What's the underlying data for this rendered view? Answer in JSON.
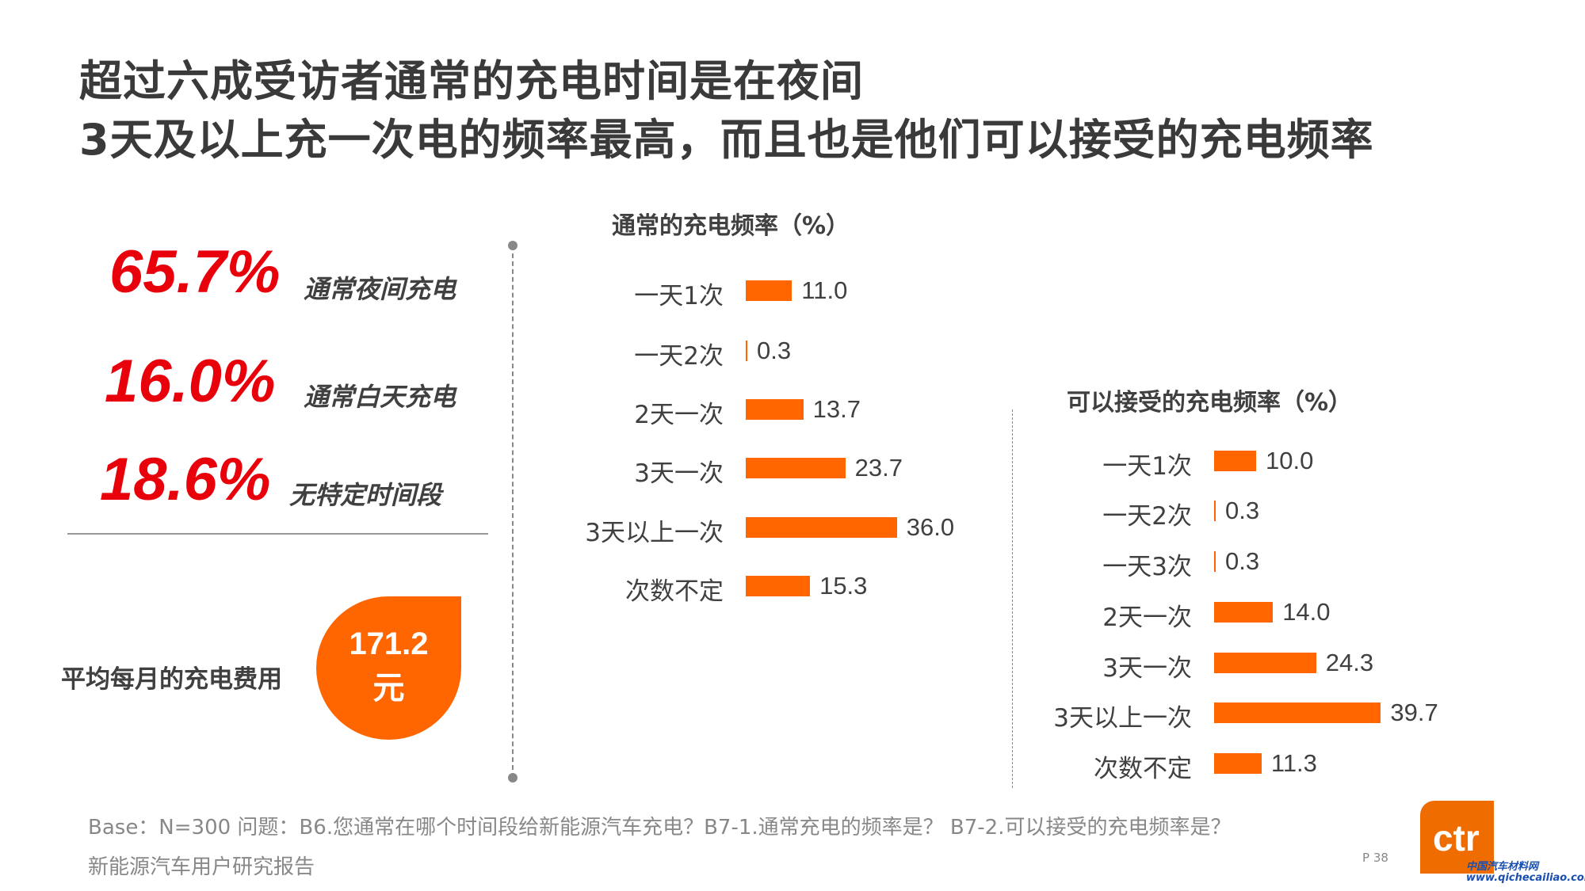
{
  "title": {
    "line1": "超过六成受访者通常的充电时间是在夜间",
    "line2": "3天及以上充一次电的频率最高，而且也是他们可以接受的充电频率"
  },
  "stats": [
    {
      "value": "65.7%",
      "label": "通常夜间充电"
    },
    {
      "value": "16.0%",
      "label": "通常白天充电"
    },
    {
      "value": "18.6%",
      "label": "无特定时间段"
    }
  ],
  "cost": {
    "label": "平均每月的充电费用",
    "value": "171.2",
    "unit": "元"
  },
  "colors": {
    "bar": "#ff6600",
    "highlight": "#e8000b",
    "badge": "#ff6600"
  },
  "chart_data": [
    {
      "type": "bar",
      "orientation": "horizontal",
      "title": "通常的充电频率（%）",
      "categories": [
        "一天1次",
        "一天2次",
        "2天一次",
        "3天一次",
        "3天以上一次",
        "次数不定"
      ],
      "values": [
        11.0,
        0.3,
        13.7,
        23.7,
        36.0,
        15.3
      ]
    },
    {
      "type": "bar",
      "orientation": "horizontal",
      "title": "可以接受的充电频率（%）",
      "categories": [
        "一天1次",
        "一天2次",
        "一天3次",
        "2天一次",
        "3天一次",
        "3天以上一次",
        "次数不定"
      ],
      "values": [
        10.0,
        0.3,
        0.3,
        14.0,
        24.3,
        39.7,
        11.3
      ]
    }
  ],
  "footer": {
    "base": "Base：N=300   问题：B6.您通常在哪个时间段给新能源汽车充电？B7-1.通常充电的频率是？ B7-2.可以接受的充电频率是？",
    "report": "新能源汽车用户研究报告",
    "page": "P 38",
    "logo": "ctr",
    "watermark": "中国汽车材料网 www.qichecailiao.com"
  }
}
